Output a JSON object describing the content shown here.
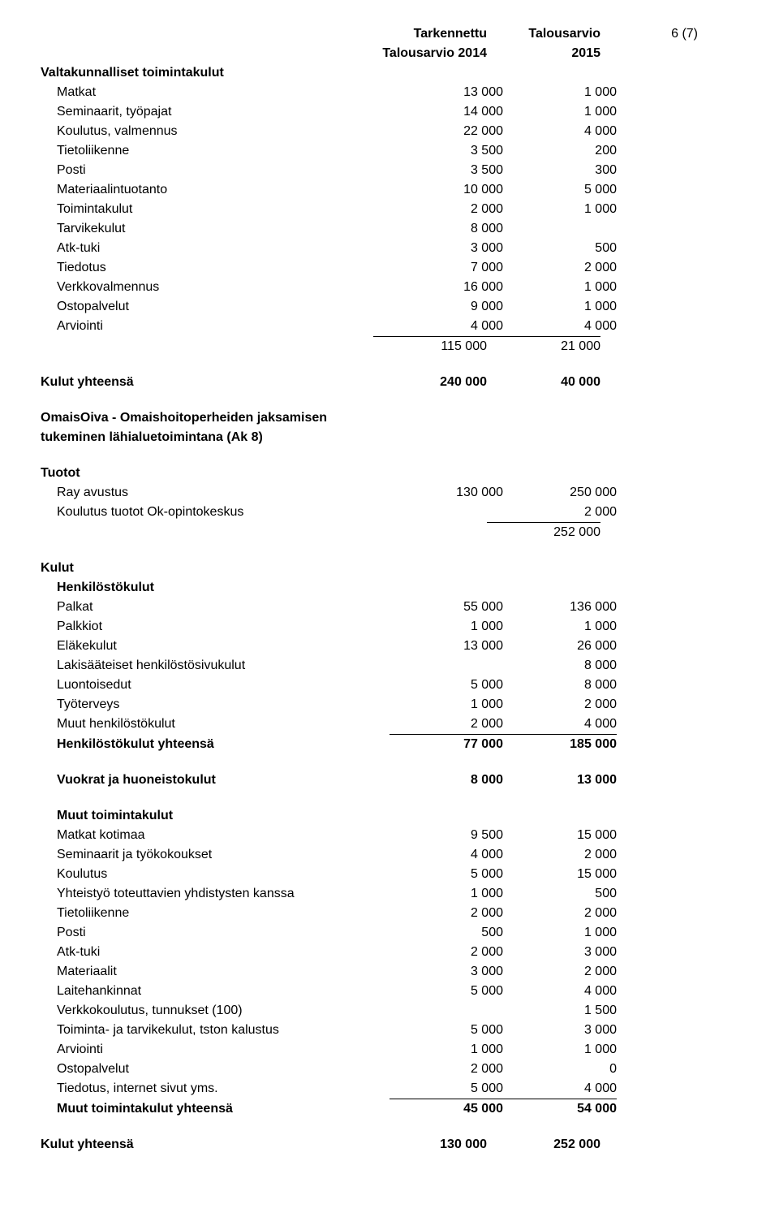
{
  "header": {
    "col1_line1": "Tarkennettu",
    "col1_line2": "Talousarvio 2014",
    "col2_line1": "Talousarvio",
    "col2_line2": "2015",
    "page": "6 (7)"
  },
  "section1": {
    "title": "Valtakunnalliset toimintakulut",
    "rows": [
      {
        "label": "Matkat",
        "c1": "13 000",
        "c2": "1 000"
      },
      {
        "label": "Seminaarit, työpajat",
        "c1": "14 000",
        "c2": "1 000"
      },
      {
        "label": "Koulutus, valmennus",
        "c1": "22 000",
        "c2": "4 000"
      },
      {
        "label": "Tietoliikenne",
        "c1": "3 500",
        "c2": "200"
      },
      {
        "label": "Posti",
        "c1": "3 500",
        "c2": "300"
      },
      {
        "label": "Materiaalintuotanto",
        "c1": "10 000",
        "c2": "5 000"
      },
      {
        "label": "Toimintakulut",
        "c1": "2 000",
        "c2": "1 000"
      },
      {
        "label": "Tarvikekulut",
        "c1": "8 000",
        "c2": ""
      },
      {
        "label": "Atk-tuki",
        "c1": "3 000",
        "c2": "500"
      },
      {
        "label": "Tiedotus",
        "c1": "7 000",
        "c2": "2 000"
      },
      {
        "label": "Verkkovalmennus",
        "c1": "16 000",
        "c2": "1 000"
      },
      {
        "label": "Ostopalvelut",
        "c1": "9 000",
        "c2": "1 000"
      },
      {
        "label": "Arviointi",
        "c1": "4 000",
        "c2": "4 000"
      }
    ],
    "subtotal": {
      "c1": "115 000",
      "c2": "21 000"
    },
    "total": {
      "label": "Kulut yhteensä",
      "c1": "240 000",
      "c2": "40 000"
    }
  },
  "section2": {
    "title1": "OmaisOiva - Omaishoitoperheiden jaksamisen",
    "title2": "tukeminen lähialuetoimintana (Ak 8)"
  },
  "tuotot": {
    "title": "Tuotot",
    "rows": [
      {
        "label": "Ray avustus",
        "c1": "130 000",
        "c2": "250 000"
      },
      {
        "label": "Koulutus tuotot Ok-opintokeskus",
        "c1": "",
        "c2": "2 000"
      }
    ],
    "subtotal": {
      "c2": "252 000"
    }
  },
  "kulut": {
    "title": "Kulut",
    "hk_title": "Henkilöstökulut",
    "hk_rows": [
      {
        "label": "Palkat",
        "c1": "55 000",
        "c2": "136 000"
      },
      {
        "label": "Palkkiot",
        "c1": "1 000",
        "c2": "1 000"
      },
      {
        "label": "Eläkekulut",
        "c1": "13 000",
        "c2": "26 000"
      },
      {
        "label": "Lakisääteiset henkilöstösivukulut",
        "c1": "",
        "c2": "8 000"
      },
      {
        "label": "Luontoisedut",
        "c1": "5 000",
        "c2": "8 000"
      },
      {
        "label": "Työterveys",
        "c1": "1 000",
        "c2": "2 000"
      },
      {
        "label": "Muut henkilöstökulut",
        "c1": "2 000",
        "c2": "4 000"
      }
    ],
    "hk_total": {
      "label": "Henkilöstökulut yhteensä",
      "c1": "77 000",
      "c2": "185 000"
    },
    "vuokrat": {
      "label": "Vuokrat ja huoneistokulut",
      "c1": "8 000",
      "c2": "13 000"
    },
    "mt_title": "Muut toimintakulut",
    "mt_rows": [
      {
        "label": "Matkat kotimaa",
        "c1": "9 500",
        "c2": "15 000"
      },
      {
        "label": "Seminaarit ja työkokoukset",
        "c1": "4 000",
        "c2": "2 000"
      },
      {
        "label": "Koulutus",
        "c1": "5 000",
        "c2": "15 000"
      },
      {
        "label": "Yhteistyö toteuttavien yhdistysten kanssa",
        "c1": "1 000",
        "c2": "500"
      },
      {
        "label": "Tietoliikenne",
        "c1": "2 000",
        "c2": "2 000"
      },
      {
        "label": "Posti",
        "c1": "500",
        "c2": "1 000"
      },
      {
        "label": "Atk-tuki",
        "c1": "2 000",
        "c2": "3 000"
      },
      {
        "label": "Materiaalit",
        "c1": "3 000",
        "c2": "2 000"
      },
      {
        "label": "Laitehankinnat",
        "c1": "5 000",
        "c2": "4 000"
      },
      {
        "label": "Verkkokoulutus, tunnukset (100)",
        "c1": "",
        "c2": "1 500"
      },
      {
        "label": "Toiminta- ja tarvikekulut, tston kalustus",
        "c1": "5 000",
        "c2": "3 000"
      },
      {
        "label": "Arviointi",
        "c1": "1 000",
        "c2": "1 000"
      },
      {
        "label": "Ostopalvelut",
        "c1": "2 000",
        "c2": "0"
      },
      {
        "label": "Tiedotus, internet sivut yms.",
        "c1": "5 000",
        "c2": "4 000"
      }
    ],
    "mt_total": {
      "label": "Muut toimintakulut yhteensä",
      "c1": "45 000",
      "c2": "54 000"
    },
    "grand_total": {
      "label": "Kulut yhteensä",
      "c1": "130 000",
      "c2": "252 000"
    }
  }
}
